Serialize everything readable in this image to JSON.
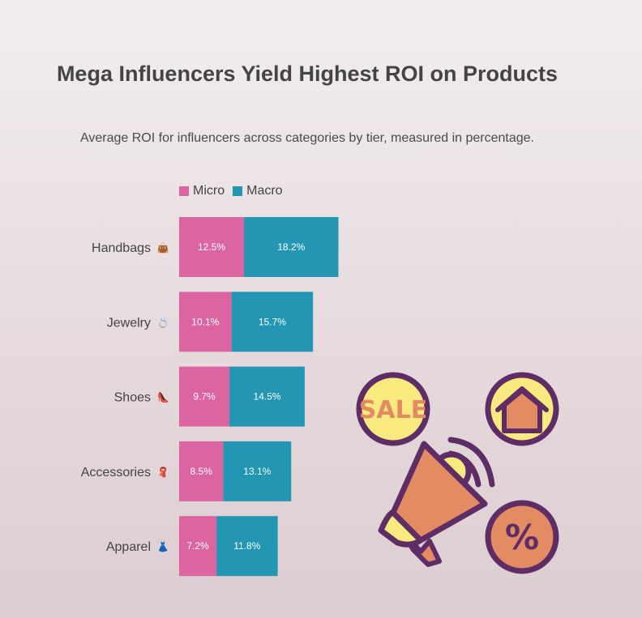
{
  "chart_data": {
    "type": "bar",
    "orientation": "horizontal",
    "stacked": true,
    "title": "Mega Influencers Yield Highest ROI on Products",
    "subtitle": "Average ROI for influencers across categories by tier, measured in percentage.",
    "categories": [
      "Handbags",
      "Jewelry",
      "Shoes",
      "Accessories",
      "Apparel"
    ],
    "category_icons": [
      "👜",
      "💍",
      "👠",
      "🧣",
      "👗"
    ],
    "series": [
      {
        "name": "Micro",
        "color": "#db64a1",
        "values": [
          12.5,
          10.1,
          9.7,
          8.5,
          7.2
        ]
      },
      {
        "name": "Macro",
        "color": "#2296b2",
        "values": [
          18.2,
          15.7,
          14.5,
          13.1,
          11.8
        ]
      }
    ],
    "value_suffix": "%",
    "legend_position": "top-left",
    "grid": false
  },
  "illustration": {
    "sale_text": "SALE",
    "percent_text": "%",
    "icons": [
      "sale-badge-icon",
      "house-icon",
      "megaphone-icon",
      "percent-badge-icon"
    ],
    "colors": {
      "outline": "#5e2d66",
      "yellow": "#f9ea7f",
      "orange": "#e38b62",
      "sale_text": "#e38b62"
    }
  }
}
